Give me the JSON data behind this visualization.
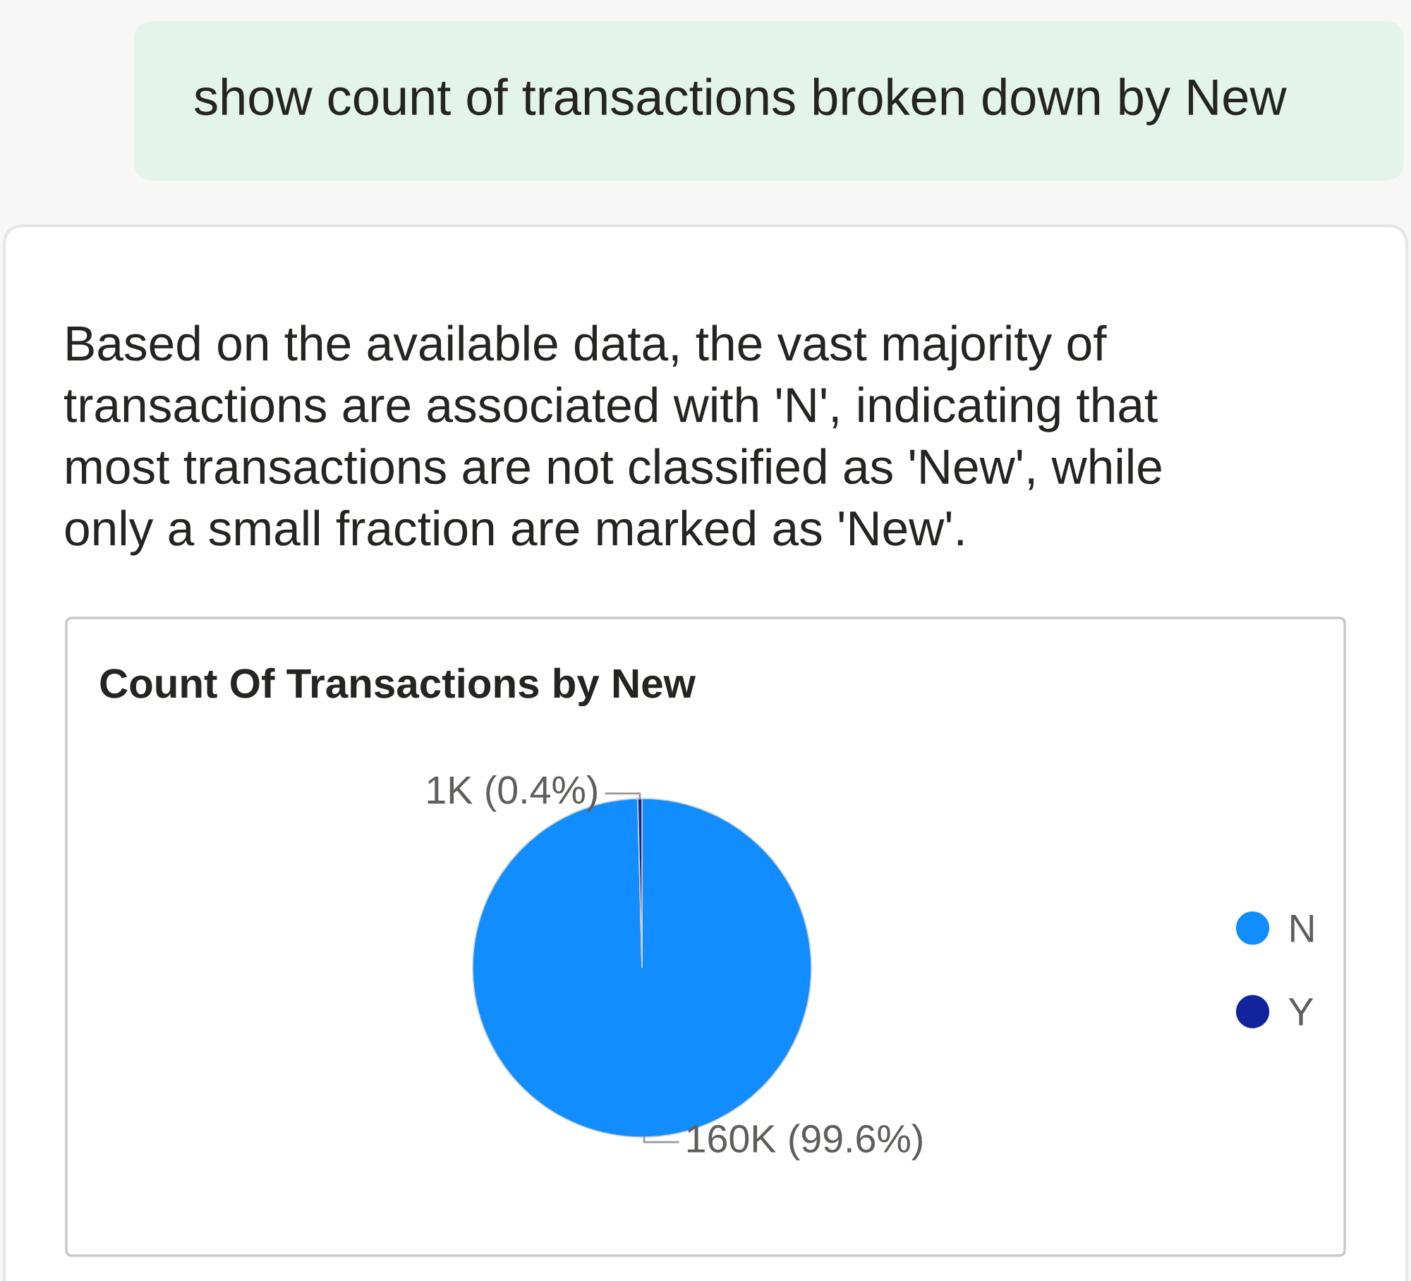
{
  "chart_data": {
    "type": "pie",
    "title": "Count Of Transactions by New",
    "categories": [
      "N",
      "Y"
    ],
    "values": [
      99.6,
      0.4
    ],
    "colors": [
      "#118dff",
      "#12239e"
    ],
    "value_labels": [
      "160K (99.6%)",
      "1K (0.4%)"
    ],
    "legend": "right",
    "annotations": [
      "show count of transactions broken down by New",
      "Based on the available data, the vast majority of\ntransactions are associated with 'N', indicating that\nmost transactions are not classified as 'New', while\nonly a small fraction are marked as 'New'."
    ]
  }
}
